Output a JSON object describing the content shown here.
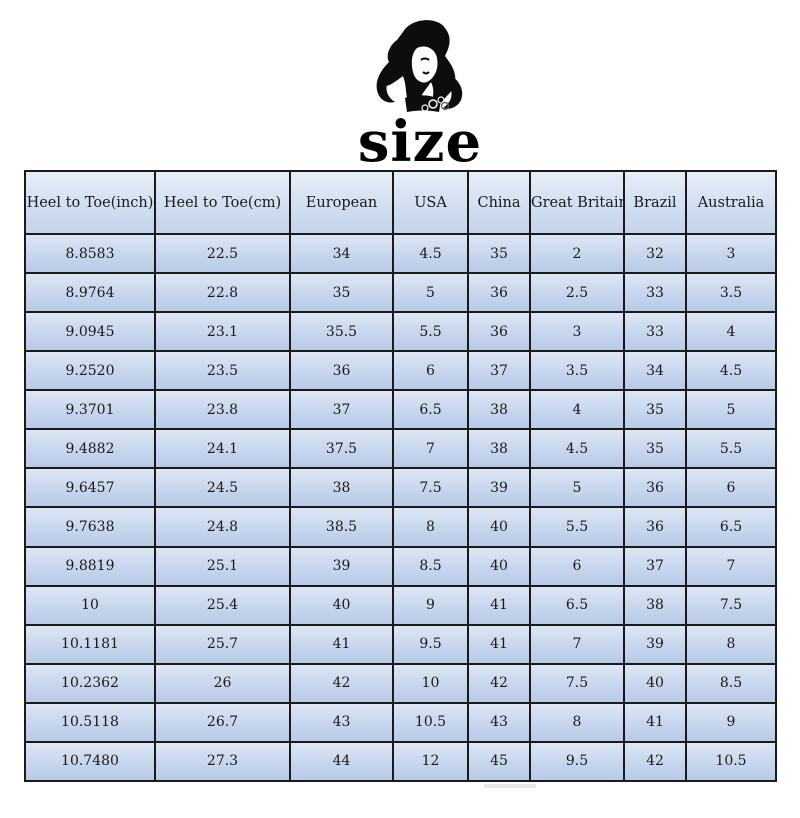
{
  "logo": {
    "text": "size",
    "icon": "woman-silhouette-icon"
  },
  "table": {
    "headers": [
      "Heel to Toe(inch)",
      "Heel to Toe(cm)",
      "European",
      "USA",
      "China",
      "Great Britain",
      "Brazil",
      "Australia"
    ],
    "rows": [
      [
        "8.8583",
        "22.5",
        "34",
        "4.5",
        "35",
        "2",
        "32",
        "3"
      ],
      [
        "8.9764",
        "22.8",
        "35",
        "5",
        "36",
        "2.5",
        "33",
        "3.5"
      ],
      [
        "9.0945",
        "23.1",
        "35.5",
        "5.5",
        "36",
        "3",
        "33",
        "4"
      ],
      [
        "9.2520",
        "23.5",
        "36",
        "6",
        "37",
        "3.5",
        "34",
        "4.5"
      ],
      [
        "9.3701",
        "23.8",
        "37",
        "6.5",
        "38",
        "4",
        "35",
        "5"
      ],
      [
        "9.4882",
        "24.1",
        "37.5",
        "7",
        "38",
        "4.5",
        "35",
        "5.5"
      ],
      [
        "9.6457",
        "24.5",
        "38",
        "7.5",
        "39",
        "5",
        "36",
        "6"
      ],
      [
        "9.7638",
        "24.8",
        "38.5",
        "8",
        "40",
        "5.5",
        "36",
        "6.5"
      ],
      [
        "9.8819",
        "25.1",
        "39",
        "8.5",
        "40",
        "6",
        "37",
        "7"
      ],
      [
        "10",
        "25.4",
        "40",
        "9",
        "41",
        "6.5",
        "38",
        "7.5"
      ],
      [
        "10.1181",
        "25.7",
        "41",
        "9.5",
        "41",
        "7",
        "39",
        "8"
      ],
      [
        "10.2362",
        "26",
        "42",
        "10",
        "42",
        "7.5",
        "40",
        "8.5"
      ],
      [
        "10.5118",
        "26.7",
        "43",
        "10.5",
        "43",
        "8",
        "41",
        "9"
      ],
      [
        "10.7480",
        "27.3",
        "44",
        "12",
        "45",
        "9.5",
        "42",
        "10.5"
      ]
    ]
  },
  "colors": {
    "cell_bg": "#c9d7ee",
    "header_bg": "#d6e1f2",
    "border": "#1a1a1a",
    "text": "#1a1a1a"
  }
}
